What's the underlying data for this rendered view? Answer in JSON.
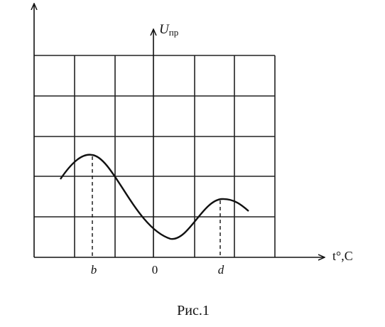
{
  "axes": {
    "y_label": "U",
    "y_label_sub": "пр",
    "x_label": "t°,C"
  },
  "points": {
    "b": "b",
    "origin": "0",
    "d": "d"
  },
  "caption": "Рис.1"
}
